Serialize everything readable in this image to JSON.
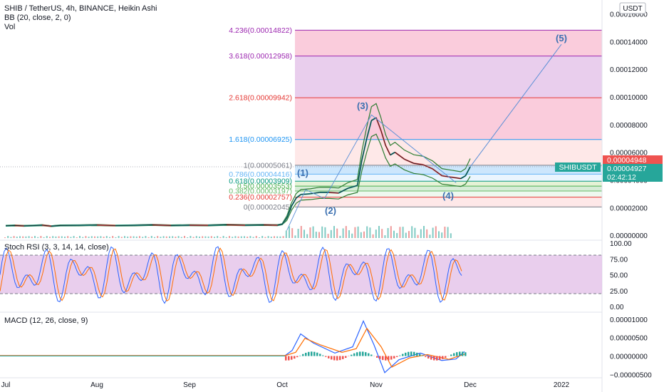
{
  "header": {
    "title": "SHIB / TetherUS, 4h, BINANCE, Heikin Ashi",
    "indicator_bb": "BB (20, close, 2, 0)",
    "indicator_vol": "Vol",
    "currency_badge": "USDT"
  },
  "price_badges": {
    "current_red": "0.00004948",
    "symbol": "SHIBUSDT",
    "current_green": "0.00004927",
    "countdown": "02:42:12"
  },
  "fib_levels": [
    {
      "label": "4.236(0.00014822)",
      "price": 0.00014822,
      "color": "#9c27b0"
    },
    {
      "label": "3.618(0.00012958)",
      "price": 0.00012958,
      "color": "#9c27b0"
    },
    {
      "label": "2.618(0.00009942)",
      "price": 9.942e-05,
      "color": "#e53935"
    },
    {
      "label": "1.618(0.00006925)",
      "price": 6.925e-05,
      "color": "#2196f3"
    },
    {
      "label": "1(0.00005061)",
      "price": 5.061e-05,
      "color": "#787b86"
    },
    {
      "label": "0.786(0.00004416)",
      "price": 4.416e-05,
      "color": "#64b5f6"
    },
    {
      "label": "0.618(0.00003909)",
      "price": 3.909e-05,
      "color": "#089981"
    },
    {
      "label": "0.5(0.00003553)",
      "price": 3.553e-05,
      "color": "#4caf50"
    },
    {
      "label": "0.382(0.00003197)",
      "price": 3.197e-05,
      "color": "#66bb6a"
    },
    {
      "label": "0.236(0.00002757)",
      "price": 2.757e-05,
      "color": "#e53935"
    },
    {
      "label": "0(0.00002045)",
      "price": 2.045e-05,
      "color": "#787b86"
    }
  ],
  "waves": [
    "(1)",
    "(2)",
    "(3)",
    "(4)",
    "(5)"
  ],
  "price_axis_ticks": [
    "0.00016000",
    "0.00014000",
    "0.00012000",
    "0.00010000",
    "0.00008000",
    "0.00006000",
    "0.00004000",
    "0.00002000",
    "0.00000000"
  ],
  "rsi": {
    "label": "Stoch RSI (3, 3, 14, 14, close)",
    "ticks": [
      "100.00",
      "75.00",
      "50.00",
      "25.00",
      "0.00"
    ]
  },
  "macd": {
    "label": "MACD (12, 26, close, 9)",
    "ticks": [
      "0.00001000",
      "0.00000500",
      "0.00000000",
      "−0.00000500"
    ]
  },
  "time_axis": [
    "Jul",
    "Aug",
    "Sep",
    "Oct",
    "Nov",
    "Dec",
    "2022"
  ],
  "colors": {
    "candle_up": "#26a69a",
    "candle_down": "#ef5350",
    "bb": "#2e7d32",
    "rsi_k": "#2962ff",
    "rsi_d": "#ff6d00",
    "rsi_band": "#e1bee7",
    "macd_line": "#2962ff",
    "signal_line": "#ff6d00"
  },
  "chart_data": [
    {
      "type": "line",
      "title": "SHIB / TetherUS, 4h, BINANCE, Heikin Ashi",
      "xlabel": "",
      "ylabel": "",
      "ylim": [
        -2e-06,
        0.000168
      ],
      "x": [
        "Jul",
        "Aug",
        "Sep",
        "Oct",
        "Nov",
        "Dec",
        "2022"
      ],
      "series": [
        {
          "name": "SHIBUSDT",
          "points": [
            [
              0.0,
              6.9e-06
            ],
            [
              0.1,
              7.1e-06
            ],
            [
              0.2,
              6.8e-06
            ],
            [
              0.3,
              7e-06
            ],
            [
              0.4,
              7.3e-06
            ],
            [
              0.5,
              6.6e-06
            ],
            [
              0.6,
              7.1e-06
            ],
            [
              0.8,
              7.2e-06
            ],
            [
              1.0,
              7.4e-06
            ],
            [
              1.2,
              7e-06
            ],
            [
              1.4,
              7.2e-06
            ],
            [
              1.6,
              7.5e-06
            ],
            [
              1.8,
              7.1e-06
            ],
            [
              2.0,
              7.3e-06
            ],
            [
              2.2,
              7.2e-06
            ],
            [
              2.4,
              7.6e-06
            ],
            [
              2.6,
              7.3e-06
            ],
            [
              2.8,
              7.5e-06
            ],
            [
              2.95,
              7.3e-06
            ],
            [
              3.0,
              8e-06
            ],
            [
              3.05,
              1.25e-05
            ],
            [
              3.1,
              2.1e-05
            ],
            [
              3.15,
              2.7e-05
            ],
            [
              3.2,
              2.95e-05
            ],
            [
              3.3,
              3e-05
            ],
            [
              3.4,
              3.1e-05
            ],
            [
              3.5,
              3.1e-05
            ],
            [
              3.6,
              3.05e-05
            ],
            [
              3.7,
              3.4e-05
            ],
            [
              3.8,
              3.6e-05
            ],
            [
              3.85,
              5.5e-05
            ],
            [
              3.9,
              7e-05
            ],
            [
              3.95,
              8.3e-05
            ],
            [
              4.0,
              8.5e-05
            ],
            [
              4.05,
              7.6e-05
            ],
            [
              4.1,
              6.5e-05
            ],
            [
              4.15,
              5.8e-05
            ],
            [
              4.2,
              6e-05
            ],
            [
              4.3,
              5.5e-05
            ],
            [
              4.4,
              5.2e-05
            ],
            [
              4.5,
              5.1e-05
            ],
            [
              4.6,
              4.8e-05
            ],
            [
              4.7,
              4.3e-05
            ],
            [
              4.8,
              4.2e-05
            ],
            [
              4.9,
              4.1e-05
            ],
            [
              4.95,
              4.3e-05
            ],
            [
              5.0,
              4.95e-05
            ]
          ]
        },
        {
          "name": "(5)",
          "points": [
            [
              5.0,
              4.95e-05
            ],
            [
              6.0,
              0.000138
            ]
          ]
        }
      ],
      "fib_retracement": {
        "anchor_0": 2.045e-05,
        "anchor_1": 5.061e-05
      }
    },
    {
      "type": "line",
      "title": "Stoch RSI (3, 3, 14, 14, close)",
      "ylim": [
        0,
        100
      ],
      "bands": [
        20,
        80
      ]
    },
    {
      "type": "line",
      "title": "MACD (12, 26, close, 9)",
      "ylim": [
        -5.5e-06,
        1.15e-05
      ]
    }
  ]
}
